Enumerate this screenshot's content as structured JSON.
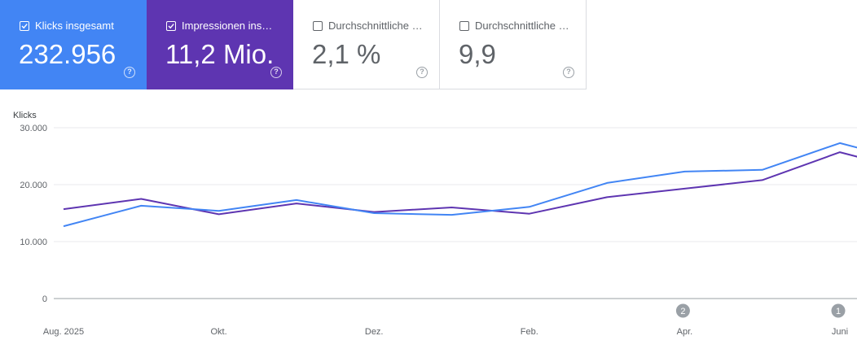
{
  "cards": [
    {
      "label": "Klicks insgesamt",
      "value": "232.956",
      "checked": true,
      "bg": "#4285f4",
      "fg": "#ffffff"
    },
    {
      "label": "Impressionen ins…",
      "value": "11,2 Mio.",
      "checked": true,
      "bg": "#5e35b1",
      "fg": "#ffffff"
    },
    {
      "label": "Durchschnittliche …",
      "value": "2,1 %",
      "checked": false,
      "bg": "#ffffff",
      "fg": "#5f6368"
    },
    {
      "label": "Durchschnittliche …",
      "value": "9,9",
      "checked": false,
      "bg": "#ffffff",
      "fg": "#5f6368"
    }
  ],
  "help_glyph": "?",
  "chart_data": {
    "type": "line",
    "ylabel": "Klicks",
    "ylim": [
      0,
      30000
    ],
    "yticks": [
      {
        "value": 0,
        "label": "0"
      },
      {
        "value": 10000,
        "label": "10.000"
      },
      {
        "value": 20000,
        "label": "20.000"
      },
      {
        "value": 30000,
        "label": "30.000"
      }
    ],
    "x": [
      "2025-08",
      "2025-09",
      "2025-10",
      "2025-11",
      "2025-12",
      "2026-01",
      "2026-02",
      "2026-03",
      "2026-04",
      "2026-05",
      "2026-06"
    ],
    "xtick_labels": [
      {
        "x": "2025-08",
        "label": "Aug. 2025"
      },
      {
        "x": "2025-10",
        "label": "Okt."
      },
      {
        "x": "2025-12",
        "label": "Dez."
      },
      {
        "x": "2026-02",
        "label": "Feb."
      },
      {
        "x": "2026-04",
        "label": "Apr."
      },
      {
        "x": "2026-06",
        "label": "Juni"
      }
    ],
    "series": [
      {
        "name": "Klicks insgesamt",
        "color": "#4285f4",
        "values": [
          12700,
          16300,
          15400,
          17300,
          15000,
          14700,
          16100,
          20300,
          22300,
          22600,
          27300
        ]
      },
      {
        "name": "Impressionen insgesamt",
        "color": "#5e35b1",
        "values": [
          15700,
          17500,
          14800,
          16700,
          15200,
          16000,
          14900,
          17800,
          19300,
          20800,
          25700
        ]
      }
    ],
    "annotations": [
      {
        "x": "2026-04",
        "label": "2"
      },
      {
        "x": "2026-06",
        "label": "1"
      }
    ],
    "grid": true
  }
}
